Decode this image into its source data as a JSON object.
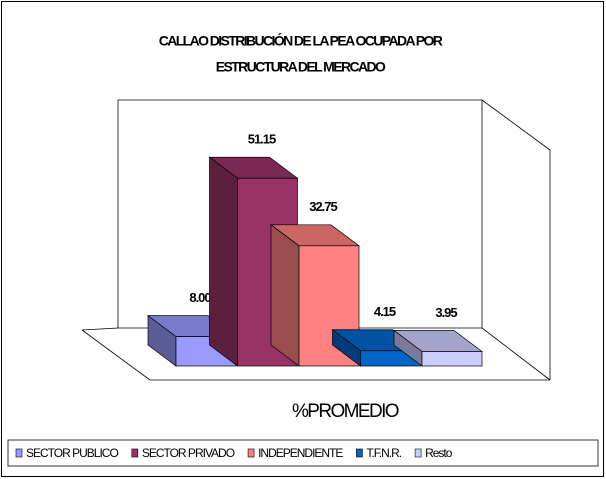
{
  "chart_data": {
    "type": "bar3d",
    "title": [
      "CALLAO DISTRIBUCIÓN DE LA PEA OCUPADA POR",
      "ESTRUCTURA DEL MERCADO"
    ],
    "x_label": "%PROMEDIO",
    "series": [
      {
        "name": "SECTOR PUBLICO",
        "color": "#9999ff",
        "values": [
          8.0
        ],
        "value_labels": [
          "8.00"
        ]
      },
      {
        "name": "SECTOR PRIVADO",
        "color": "#993366",
        "values": [
          51.15
        ],
        "value_labels": [
          "51.15"
        ]
      },
      {
        "name": "INDEPENDIENTE",
        "color": "#ff8080",
        "values": [
          32.75
        ],
        "value_labels": [
          "32.75"
        ]
      },
      {
        "name": "T.F.N.R.",
        "color": "#0066cc",
        "values": [
          4.15
        ],
        "value_labels": [
          "4.15"
        ]
      },
      {
        "name": "Resto",
        "color": "#ccccff",
        "values": [
          3.95
        ],
        "value_labels": [
          "3.95"
        ]
      }
    ],
    "legend": "bottom"
  }
}
